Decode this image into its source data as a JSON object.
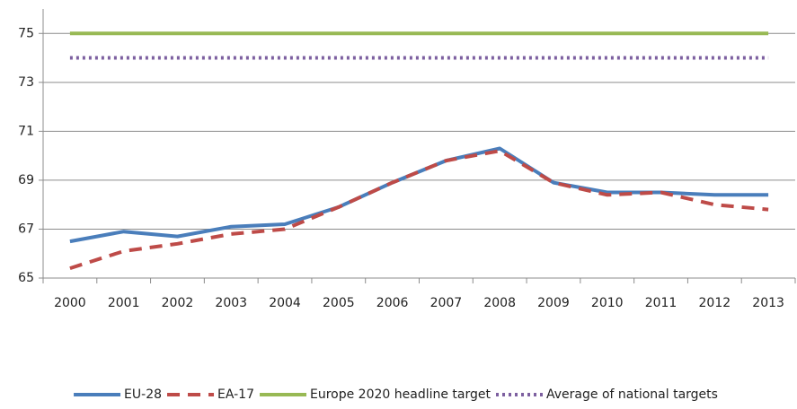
{
  "chart_data": {
    "type": "line",
    "categories": [
      "2000",
      "2001",
      "2002",
      "2003",
      "2004",
      "2005",
      "2006",
      "2007",
      "2008",
      "2009",
      "2010",
      "2011",
      "2012",
      "2013"
    ],
    "series": [
      {
        "name": "EU-28",
        "color": "#4a7ebb",
        "style": "solid",
        "values": [
          66.5,
          66.9,
          66.7,
          67.1,
          67.2,
          67.9,
          68.9,
          69.8,
          70.3,
          68.9,
          68.5,
          68.5,
          68.4,
          68.4
        ]
      },
      {
        "name": "EA-17",
        "color": "#be4b48",
        "style": "dashed",
        "values": [
          65.4,
          66.1,
          66.4,
          66.8,
          67.0,
          67.9,
          68.9,
          69.8,
          70.2,
          68.9,
          68.4,
          68.5,
          68.0,
          67.8
        ]
      },
      {
        "name": "Europe 2020 headline target",
        "color": "#98b954",
        "style": "solid",
        "values": [
          75,
          75,
          75,
          75,
          75,
          75,
          75,
          75,
          75,
          75,
          75,
          75,
          75,
          75
        ]
      },
      {
        "name": "Average of national targets",
        "color": "#7d60a0",
        "style": "dotted",
        "values": [
          74,
          74,
          74,
          74,
          74,
          74,
          74,
          74,
          74,
          74,
          74,
          74,
          74,
          74
        ]
      }
    ],
    "ylim": [
      65,
      76
    ],
    "yticks": [
      65,
      67,
      69,
      71,
      73,
      75
    ],
    "grid": true,
    "legend": "bottom"
  }
}
